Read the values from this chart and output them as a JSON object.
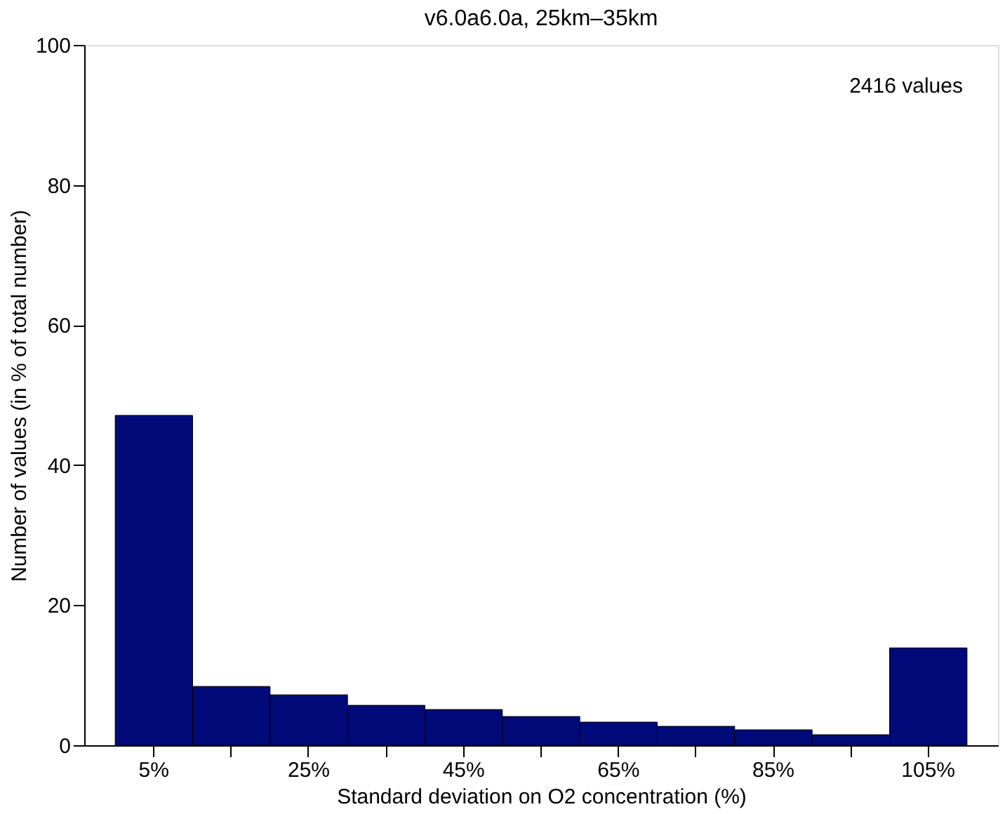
{
  "chart_data": {
    "type": "bar",
    "title": "v6.0a6.0a, 25km–35km",
    "xlabel": "Standard deviation on O2 concentration (%)",
    "ylabel": "Number of values (in % of total number)",
    "categories": [
      "5%",
      null,
      "25%",
      null,
      "45%",
      null,
      "65%",
      null,
      "85%",
      null,
      "105%"
    ],
    "values": [
      47.1,
      8.4,
      7.2,
      5.7,
      5.1,
      4.1,
      3.3,
      2.7,
      2.2,
      1.5,
      13.9
    ],
    "color": "#000a78",
    "ylim": [
      0,
      100
    ],
    "yticks": [
      0,
      20,
      40,
      60,
      80,
      100
    ],
    "annotations": [
      "2416 values"
    ],
    "grid": false
  }
}
